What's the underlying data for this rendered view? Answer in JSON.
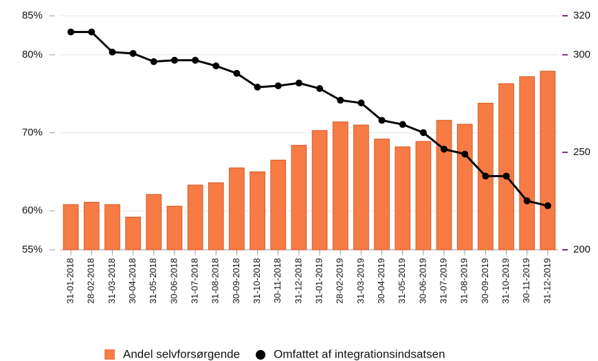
{
  "chart_data": {
    "type": "bar_line",
    "categories": [
      "31-01-2018",
      "28-02-2018",
      "31-03-2018",
      "30-04-2018",
      "31-05-2018",
      "30-06-2018",
      "31-07-2018",
      "31-08-2018",
      "30-09-2018",
      "31-10-2018",
      "30-11-2018",
      "31-12-2018",
      "31-01-2019",
      "28-02-2019",
      "31-03-2019",
      "30-04-2019",
      "31-05-2019",
      "30-06-2019",
      "31-07-2019",
      "31-08-2019",
      "30-09-2019",
      "31-10-2019",
      "30-11-2019",
      "31-12-2019"
    ],
    "series": [
      {
        "name": "Andel selvforsørgende",
        "type": "bar",
        "color": "#f77b45",
        "axis": "y",
        "values": [
          60.8,
          61.1,
          60.8,
          59.2,
          62.1,
          60.6,
          63.3,
          63.6,
          65.5,
          65.0,
          66.5,
          68.4,
          70.3,
          71.4,
          71.0,
          69.2,
          68.2,
          68.9,
          71.6,
          71.1,
          73.8,
          76.3,
          77.2,
          77.9
        ]
      },
      {
        "name": "Omfattet af integrationsindsatsen",
        "type": "line",
        "color": "#000000",
        "axis": "y2",
        "values": [
          311.7,
          311.7,
          301.4,
          300.7,
          296.5,
          297.2,
          297.2,
          294.3,
          290.5,
          283.4,
          284.1,
          285.5,
          282.7,
          276.7,
          275.3,
          266.4,
          264.3,
          260.1,
          251.6,
          249.1,
          237.8,
          237.8,
          225.1,
          222.6
        ]
      }
    ],
    "ylim": [
      55,
      85
    ],
    "yticks": [
      {
        "value": 55,
        "label": "55%"
      },
      {
        "value": 60,
        "label": "60%"
      },
      {
        "value": 70,
        "label": "70%"
      },
      {
        "value": 80,
        "label": "80%"
      },
      {
        "value": 85,
        "label": "85%"
      }
    ],
    "y2lim": [
      200,
      320
    ],
    "y2ticks": [
      200,
      250,
      300,
      320
    ],
    "y2color": "#7b2a7b",
    "grid": true
  }
}
